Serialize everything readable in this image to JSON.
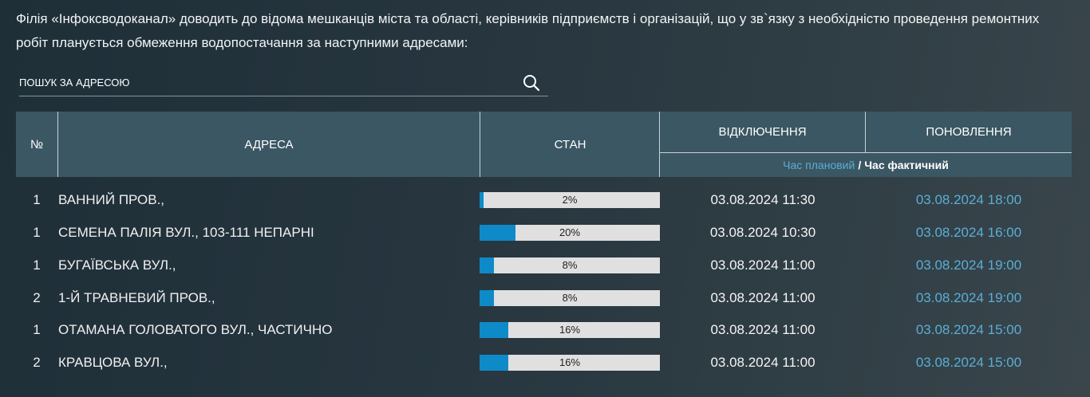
{
  "intro": {
    "text": "Філія «Інфоксводоканал» доводить до відома мешканців міста та області, керівників підприємств і організацій, що у зв`язку з необхідністю проведення ремонтних робіт планується обмеження водопостачання за наступними адресами:"
  },
  "search": {
    "placeholder": "ПОШУК ЗА АДРЕСОЮ",
    "value": "",
    "icon": "search-icon"
  },
  "table": {
    "headers": {
      "num": "№",
      "address": "АДРЕСА",
      "state": "СТАН",
      "off": "ВІДКЛЮЧЕННЯ",
      "on": "ПОНОВЛЕННЯ",
      "planned": "Час плановий",
      "separator": "/",
      "actual": "Час фактичний"
    },
    "colors": {
      "header_bg": "#3b5763",
      "progress_fill": "#0e8ac8",
      "progress_track": "#e0e0e0",
      "planned_time": "#5aaed6"
    },
    "rows": [
      {
        "num": "1",
        "address": "ВАННИЙ ПРОВ.,",
        "progress": 2,
        "progress_label": "2%",
        "off_time": "03.08.2024 11:30",
        "on_time": "03.08.2024 18:00"
      },
      {
        "num": "1",
        "address": "СЕМЕНА ПАЛІЯ ВУЛ., 103-111 НЕПАРНІ",
        "progress": 20,
        "progress_label": "20%",
        "off_time": "03.08.2024 10:30",
        "on_time": "03.08.2024 16:00"
      },
      {
        "num": "1",
        "address": "БУГАЇВСЬКА ВУЛ.,",
        "progress": 8,
        "progress_label": "8%",
        "off_time": "03.08.2024 11:00",
        "on_time": "03.08.2024 19:00"
      },
      {
        "num": "2",
        "address": "1-Й ТРАВНЕВИЙ ПРОВ.,",
        "progress": 8,
        "progress_label": "8%",
        "off_time": "03.08.2024 11:00",
        "on_time": "03.08.2024 19:00"
      },
      {
        "num": "1",
        "address": "ОТАМАНА ГОЛОВАТОГО ВУЛ., ЧАСТИЧНО",
        "progress": 16,
        "progress_label": "16%",
        "off_time": "03.08.2024 11:00",
        "on_time": "03.08.2024 15:00"
      },
      {
        "num": "2",
        "address": "КРАВЦОВА ВУЛ.,",
        "progress": 16,
        "progress_label": "16%",
        "off_time": "03.08.2024 11:00",
        "on_time": "03.08.2024 15:00"
      }
    ]
  }
}
